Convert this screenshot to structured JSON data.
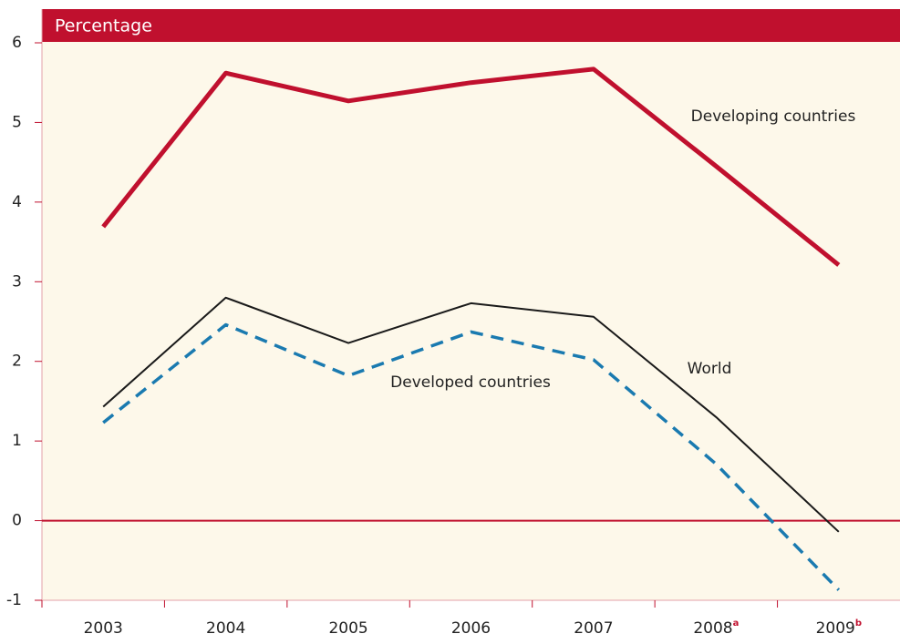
{
  "chart_data": {
    "type": "line",
    "ylabel": "Percentage",
    "categories": [
      "2003",
      "2004",
      "2005",
      "2006",
      "2007",
      "2008",
      "2009"
    ],
    "category_notes": [
      null,
      null,
      null,
      null,
      null,
      "a",
      "b"
    ],
    "series": [
      {
        "name": "Developing countries",
        "color": "#c0102e",
        "style": "solid",
        "width": 5,
        "values": [
          3.69,
          5.62,
          5.27,
          5.5,
          5.67,
          4.45,
          3.21
        ]
      },
      {
        "name": "World",
        "color": "#1a1a1a",
        "style": "solid",
        "width": 2,
        "values": [
          1.43,
          2.8,
          2.23,
          2.73,
          2.56,
          1.3,
          -0.14
        ]
      },
      {
        "name": "Developed countries",
        "color": "#1a7ab0",
        "style": "dashed",
        "width": 3.5,
        "values": [
          1.23,
          2.46,
          1.82,
          2.37,
          2.02,
          0.71,
          -0.87
        ]
      }
    ],
    "ylim": [
      -1,
      6
    ],
    "yticks": [
      -1,
      0,
      1,
      2,
      3,
      4,
      5,
      6
    ],
    "zero_line": true
  }
}
